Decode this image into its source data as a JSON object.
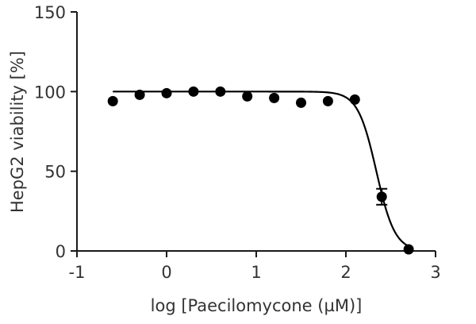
{
  "chart_data": {
    "type": "scatter",
    "xlabel": "log [Paecilomycone (µM)]",
    "ylabel": "HepG2 viability [%]",
    "xlim": [
      -1,
      3
    ],
    "ylim": [
      0,
      150
    ],
    "xticks": [
      -1,
      0,
      1,
      2,
      3
    ],
    "xtick_labels": [
      "-1",
      "0",
      "1",
      "2",
      "3"
    ],
    "yticks": [
      0,
      50,
      100,
      150
    ],
    "ytick_labels": [
      "0",
      "50",
      "100",
      "150"
    ],
    "grid": false,
    "marker_color": "#000000",
    "points": [
      {
        "x": -0.6,
        "y": 94
      },
      {
        "x": -0.3,
        "y": 98
      },
      {
        "x": 0.0,
        "y": 99
      },
      {
        "x": 0.3,
        "y": 100
      },
      {
        "x": 0.6,
        "y": 100
      },
      {
        "x": 0.9,
        "y": 97
      },
      {
        "x": 1.2,
        "y": 96
      },
      {
        "x": 1.5,
        "y": 93
      },
      {
        "x": 1.8,
        "y": 94
      },
      {
        "x": 2.1,
        "y": 95
      },
      {
        "x": 2.4,
        "y": 34,
        "err_low": 29,
        "err_high": 39
      },
      {
        "x": 2.7,
        "y": 1
      }
    ],
    "fit_curve": {
      "type": "sigmoid",
      "top": 100,
      "bottom": 0,
      "log_ic50": 2.34,
      "hill_slope": -4.2,
      "x_range": [
        -0.6,
        2.7
      ]
    }
  }
}
